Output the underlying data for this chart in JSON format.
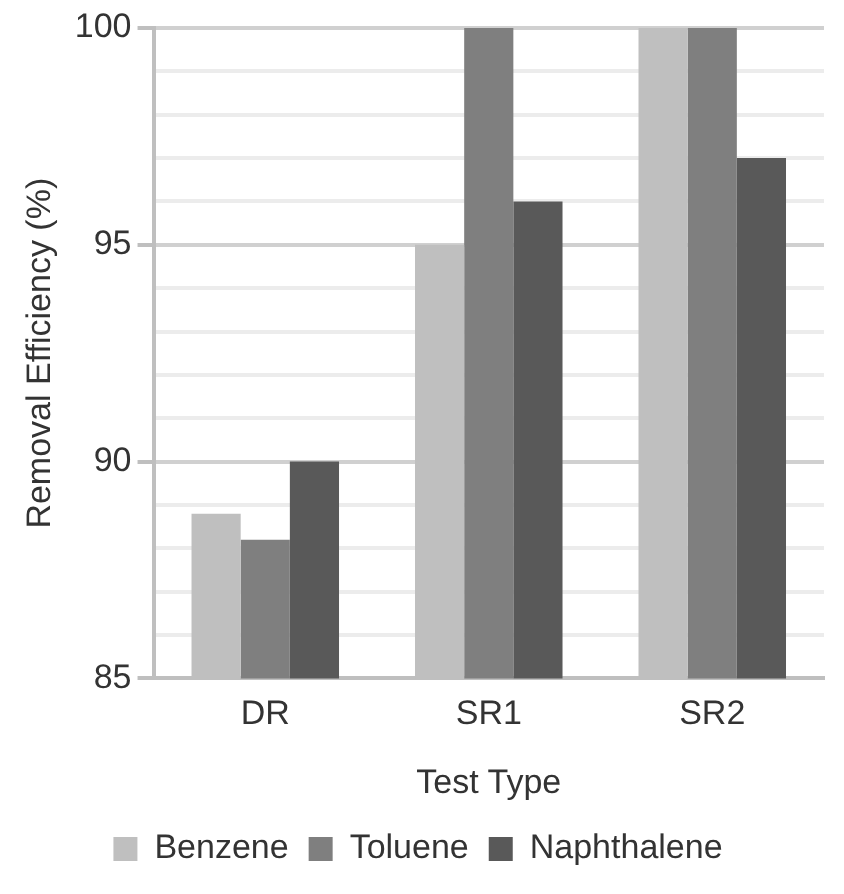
{
  "chart_data": {
    "type": "bar",
    "xlabel": "Test Type",
    "ylabel": "Removal Efficiency (%)",
    "categories": [
      "DR",
      "SR1",
      "SR2"
    ],
    "series": [
      {
        "name": "Benzene",
        "color": "#bfbfbf",
        "values": [
          88.8,
          95,
          100
        ]
      },
      {
        "name": "Toluene",
        "color": "#7f7f7f",
        "values": [
          88.2,
          100,
          100
        ]
      },
      {
        "name": "Naphthalene",
        "color": "#595959",
        "values": [
          90,
          96,
          97
        ]
      }
    ],
    "ylim": [
      85,
      100
    ],
    "yticks": [
      85,
      {
        "value": 86,
        "label": null
      },
      {
        "value": 87,
        "label": null
      },
      {
        "value": 88,
        "label": null
      },
      {
        "value": 89,
        "label": null
      },
      90,
      {
        "value": 91,
        "label": null
      },
      {
        "value": 92,
        "label": null
      },
      {
        "value": 93,
        "label": null
      },
      {
        "value": 94,
        "label": null
      },
      95,
      {
        "value": 96,
        "label": null
      },
      {
        "value": 97,
        "label": null
      },
      {
        "value": 98,
        "label": null
      },
      {
        "value": 99,
        "label": null
      },
      100
    ],
    "grid": "y",
    "legend": "bottom"
  }
}
